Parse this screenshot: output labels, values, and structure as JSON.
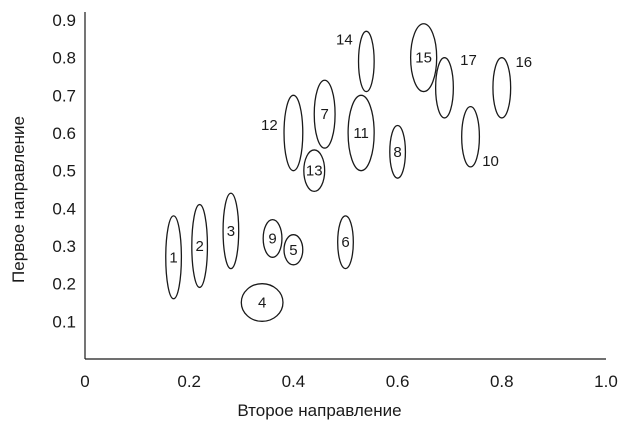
{
  "chart_data": {
    "type": "scatter",
    "title": "",
    "xlabel": "Второе направление",
    "ylabel": "Первое направление",
    "xlim": [
      0,
      1.0
    ],
    "ylim": [
      0,
      0.9
    ],
    "xticks": [
      "0",
      "0.2",
      "0.4",
      "0.6",
      "0.8",
      "1.0"
    ],
    "yticks": [
      "0.1",
      "0.2",
      "0.3",
      "0.4",
      "0.5",
      "0.6",
      "0.7",
      "0.8",
      "0.9"
    ],
    "grid": false,
    "points": [
      {
        "label": "1",
        "x": 0.17,
        "y": 0.27,
        "sx": 0.015,
        "sy": 0.11
      },
      {
        "label": "2",
        "x": 0.22,
        "y": 0.3,
        "sx": 0.015,
        "sy": 0.11
      },
      {
        "label": "3",
        "x": 0.28,
        "y": 0.34,
        "sx": 0.015,
        "sy": 0.1
      },
      {
        "label": "4",
        "x": 0.34,
        "y": 0.15,
        "sx": 0.04,
        "sy": 0.05
      },
      {
        "label": "5",
        "x": 0.4,
        "y": 0.29,
        "sx": 0.018,
        "sy": 0.04
      },
      {
        "label": "6",
        "x": 0.5,
        "y": 0.31,
        "sx": 0.015,
        "sy": 0.07
      },
      {
        "label": "7",
        "x": 0.46,
        "y": 0.65,
        "sx": 0.02,
        "sy": 0.09
      },
      {
        "label": "8",
        "x": 0.6,
        "y": 0.55,
        "sx": 0.015,
        "sy": 0.07
      },
      {
        "label": "9",
        "x": 0.36,
        "y": 0.32,
        "sx": 0.018,
        "sy": 0.05
      },
      {
        "label": "10",
        "x": 0.74,
        "y": 0.59,
        "sx": 0.017,
        "sy": 0.08
      },
      {
        "label": "11",
        "x": 0.53,
        "y": 0.6,
        "sx": 0.025,
        "sy": 0.1
      },
      {
        "label": "12",
        "x": 0.4,
        "y": 0.6,
        "sx": 0.018,
        "sy": 0.1
      },
      {
        "label": "13",
        "x": 0.44,
        "y": 0.5,
        "sx": 0.02,
        "sy": 0.055
      },
      {
        "label": "14",
        "x": 0.54,
        "y": 0.79,
        "sx": 0.015,
        "sy": 0.08
      },
      {
        "label": "15",
        "x": 0.65,
        "y": 0.8,
        "sx": 0.025,
        "sy": 0.09
      },
      {
        "label": "16",
        "x": 0.8,
        "y": 0.72,
        "sx": 0.017,
        "sy": 0.08
      },
      {
        "label": "17",
        "x": 0.69,
        "y": 0.72,
        "sx": 0.017,
        "sy": 0.08
      }
    ]
  }
}
